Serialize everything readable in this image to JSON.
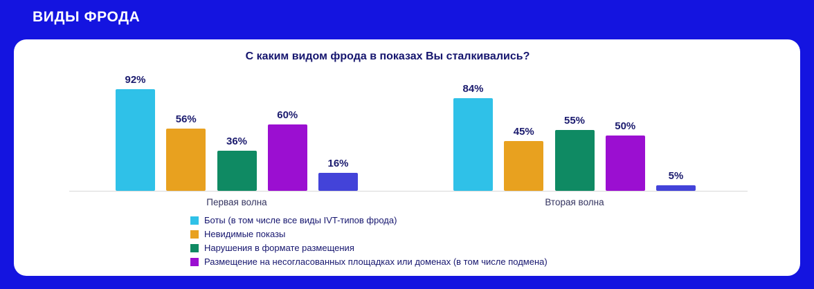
{
  "header": {
    "title": "ВИДЫ ФРОДА"
  },
  "chart_data": {
    "type": "bar",
    "title": "С каким видом фрода в показах Вы сталкивались?",
    "categories": [
      "Первая волна",
      "Вторая волна"
    ],
    "series": [
      {
        "name": "Боты (в том числе все виды IVT-типов фрода)",
        "color": "#2fc1e8",
        "values": [
          92,
          84
        ],
        "in_legend": true
      },
      {
        "name": "Невидимые показы",
        "color": "#e8a11f",
        "values": [
          56,
          45
        ],
        "in_legend": true
      },
      {
        "name": "Нарушения в формате размещения",
        "color": "#0f8a63",
        "values": [
          36,
          55
        ],
        "in_legend": true
      },
      {
        "name": "Размещение на несогласованных площадках или доменах (в том числе подмена)",
        "color": "#9b0fd1",
        "values": [
          60,
          50
        ],
        "in_legend": true
      },
      {
        "name": "",
        "color": "#4343d9",
        "values": [
          16,
          5
        ],
        "in_legend": false
      }
    ],
    "value_suffix": "%",
    "ylim": [
      0,
      100
    ],
    "grid": false,
    "legend_position": "bottom-left"
  },
  "colors": {
    "background": "#1414e0",
    "card": "#ffffff",
    "title_text": "#15156e",
    "value_label_text": "#1b1b6e",
    "axis_line": "#d8d8d8"
  }
}
